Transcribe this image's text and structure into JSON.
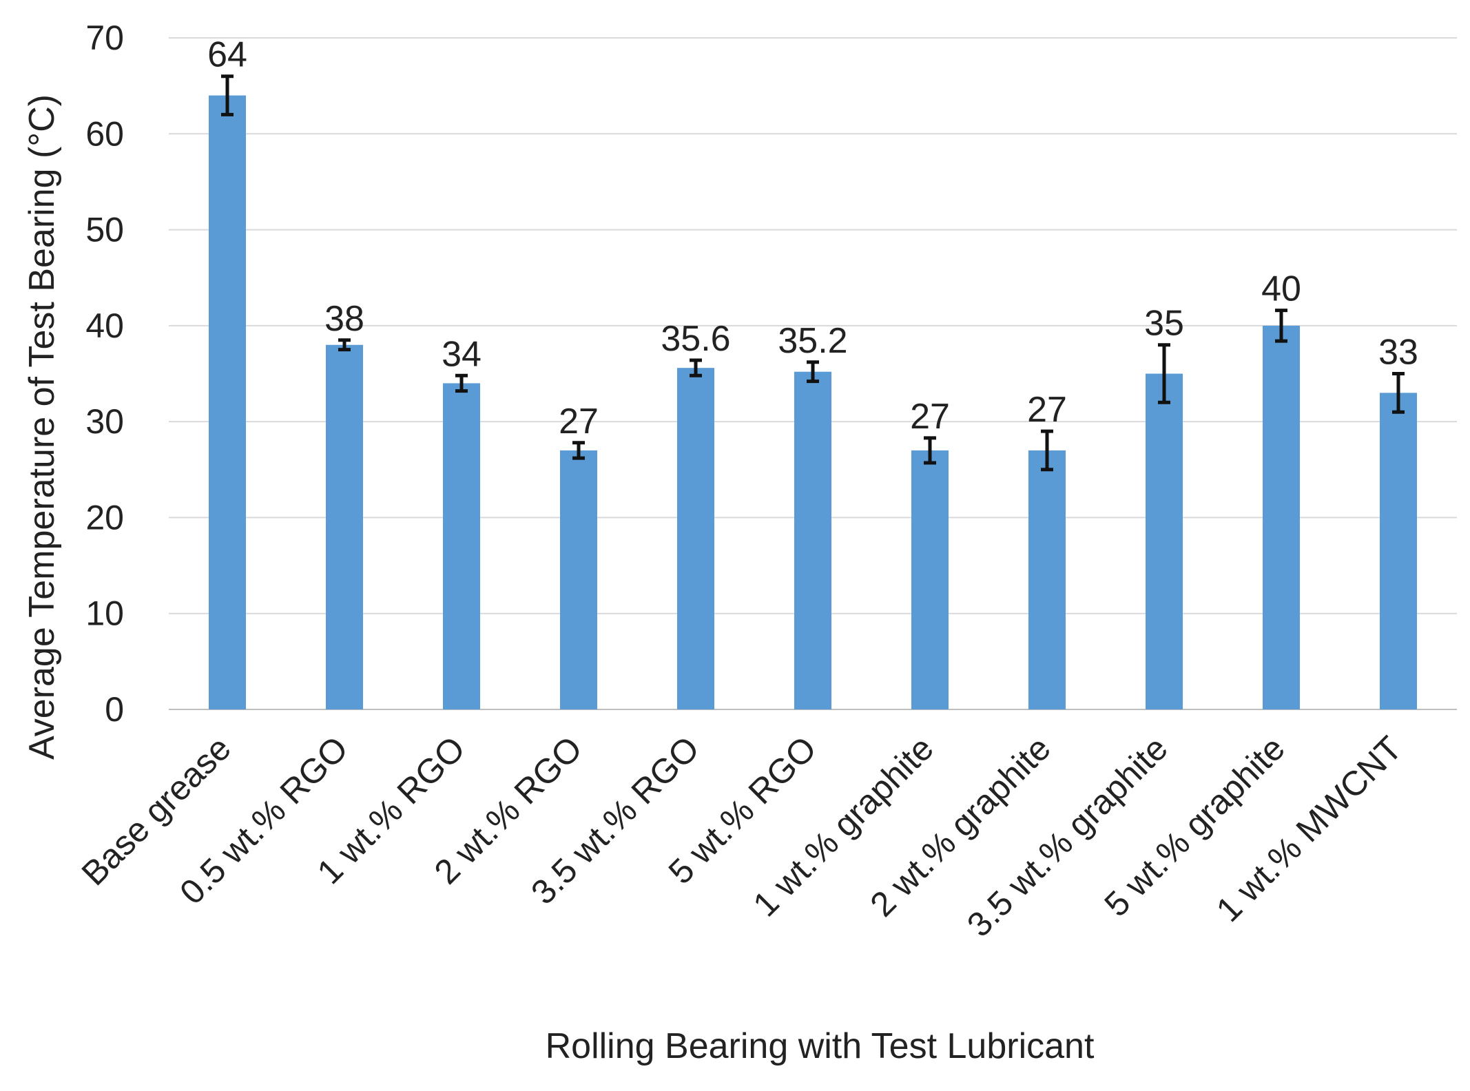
{
  "chart_data": {
    "type": "bar",
    "xlabel": "Rolling Bearing with Test Lubricant",
    "ylabel": "Average Temperature of Test Bearing (°C)",
    "ylim": [
      0,
      70
    ],
    "yticks": [
      0,
      10,
      20,
      30,
      40,
      50,
      60,
      70
    ],
    "grid": true,
    "bar_color": "#5B9BD5",
    "categories": [
      "Base grease",
      "0.5 wt.% RGO",
      "1 wt.% RGO",
      "2 wt.% RGO",
      "3.5 wt.% RGO",
      "5 wt.% RGO",
      "1 wt.% graphite",
      "2 wt.% graphite",
      "3.5 wt.% graphite",
      "5 wt.% graphite",
      "1 wt.% MWCNT"
    ],
    "values": [
      64,
      38,
      34,
      27,
      35.6,
      35.2,
      27,
      27,
      35,
      40,
      33
    ],
    "value_labels": [
      "64",
      "38",
      "34",
      "27",
      "35.6",
      "35.2",
      "27",
      "27",
      "35",
      "40",
      "33"
    ],
    "errors": [
      2,
      0.5,
      0.8,
      0.8,
      0.8,
      1,
      1.3,
      2,
      3,
      1.6,
      2
    ]
  }
}
